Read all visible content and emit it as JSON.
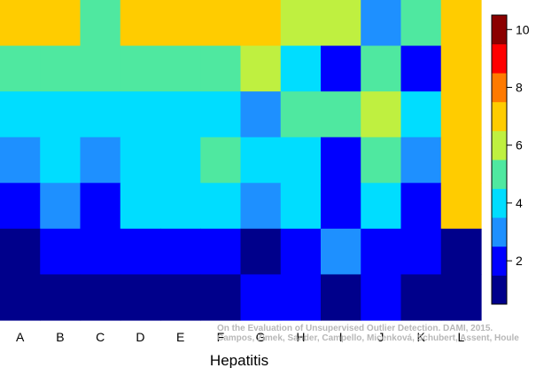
{
  "chart_data": {
    "type": "heatmap",
    "xlabel": "Hepatitis",
    "ylabel": "",
    "title": "",
    "categories": [
      "A",
      "B",
      "C",
      "D",
      "E",
      "F",
      "G",
      "H",
      "I",
      "J",
      "K",
      "L"
    ],
    "rows_top_to_bottom": [
      [
        7,
        7,
        5,
        7,
        7,
        7,
        7,
        6,
        6,
        3,
        5,
        7
      ],
      [
        5,
        5,
        5,
        5,
        5,
        5,
        6,
        4,
        2,
        5,
        2,
        7
      ],
      [
        4,
        4,
        4,
        4,
        4,
        4,
        3,
        5,
        5,
        6,
        4,
        7
      ],
      [
        3,
        4,
        3,
        4,
        4,
        5,
        4,
        4,
        2,
        5,
        3,
        7
      ],
      [
        2,
        3,
        2,
        4,
        4,
        4,
        3,
        4,
        2,
        4,
        2,
        7
      ],
      [
        1,
        2,
        2,
        2,
        2,
        2,
        1,
        2,
        3,
        2,
        2,
        1
      ],
      [
        1,
        1,
        1,
        1,
        1,
        1,
        2,
        2,
        1,
        2,
        1,
        1
      ]
    ],
    "colorbar": {
      "levels": [
        1,
        2,
        3,
        4,
        5,
        6,
        7,
        8,
        9,
        10
      ],
      "colors": [
        "#00008B",
        "#0000FF",
        "#1E90FF",
        "#00DDFF",
        "#4FE8A0",
        "#BFF040",
        "#FFCC00",
        "#FF7A00",
        "#FF0000",
        "#8B0000"
      ],
      "tick_labels": [
        "2",
        "4",
        "6",
        "8",
        "10"
      ],
      "tick_values": [
        2,
        4,
        6,
        8,
        10
      ],
      "range": [
        1,
        10
      ]
    },
    "footnote": [
      "On the Evaluation of Unsupervised Outlier Detection. DAMI, 2015.",
      "Campos, Zimek, Sander, Campello, Micenková, Schubert, Assent, Houle"
    ]
  }
}
